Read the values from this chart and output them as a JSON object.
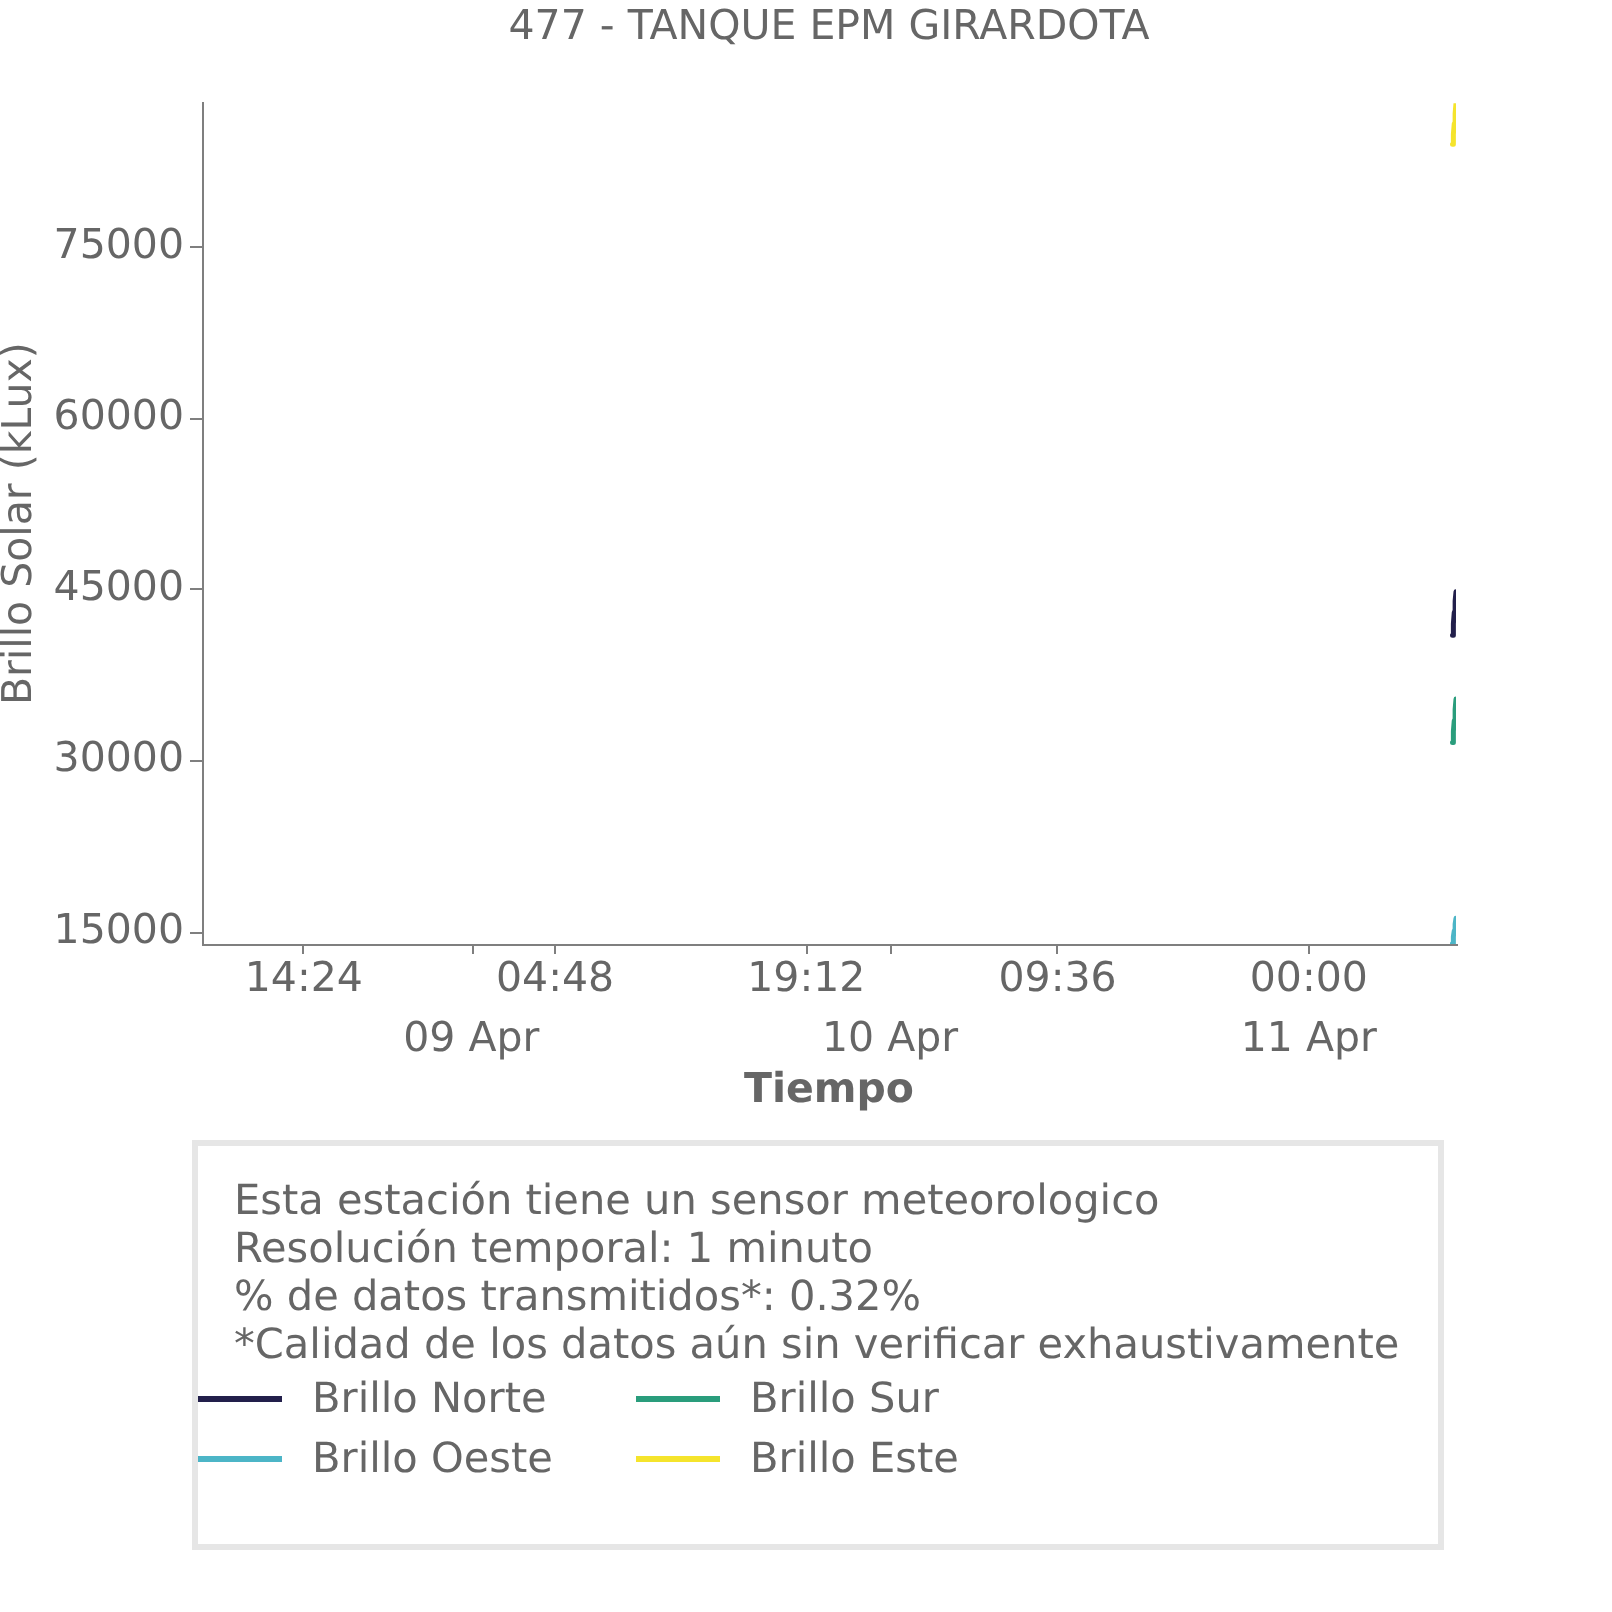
{
  "chart_data": {
    "type": "line",
    "title": "477 - TANQUE EPM GIRARDOTA",
    "xlabel": "Tiempo",
    "ylabel": "Brillo Solar (kLux)",
    "x": [
      "--04-11T08:14",
      "--04-11T08:17",
      "--04-11T08:20",
      "--04-11T08:23",
      "--04-11T08:26"
    ],
    "series": [
      {
        "name": "Brillo Norte",
        "color": "#221f4b",
        "values": [
          41000,
          42000,
          43000,
          44000,
          44800
        ]
      },
      {
        "name": "Brillo Sur",
        "color": "#2a9d7c",
        "values": [
          31600,
          32600,
          33500,
          34500,
          35400
        ]
      },
      {
        "name": "Brillo Oeste",
        "color": "#4cb5c7",
        "values": [
          14000,
          14600,
          15100,
          15700,
          16200
        ]
      },
      {
        "name": "Brillo Este",
        "color": "#f5e42c",
        "values": [
          84000,
          84900,
          85800,
          86700,
          87600
        ]
      }
    ],
    "xlim": [
      "--04-08T08:34",
      "--04-11T08:26"
    ],
    "ylim": [
      13950,
      87600
    ],
    "yticks": [
      15000,
      30000,
      45000,
      60000,
      75000
    ],
    "xticks": [
      {
        "value": "--04-08T14:24",
        "label": "14:24"
      },
      {
        "value": "--04-09T04:48",
        "label": "04:48"
      },
      {
        "value": "--04-09T19:12",
        "label": "19:12"
      },
      {
        "value": "--04-10T09:36",
        "label": "09:36"
      },
      {
        "value": "--04-11T00:00",
        "label": "00:00"
      }
    ],
    "x2lim": [
      "--04-08T08:34",
      "--04-11T08:26"
    ],
    "x2ticks": [
      {
        "value": "--04-09T00:00",
        "label": "09 Apr"
      },
      {
        "value": "--04-10T00:00",
        "label": "10 Apr"
      },
      {
        "value": "--04-11T00:00",
        "label": "11 Apr"
      }
    ],
    "legend": "bottom",
    "marker": "none",
    "line_style": "solid",
    "grid": false,
    "annotations": [
      "Esta estación tiene un sensor meteorologico",
      "Resolución temporal: 1 minuto",
      "% de datos transmitidos*: 0.32%",
      "*Calidad de los datos aún sin verificar exhaustivamente"
    ]
  }
}
